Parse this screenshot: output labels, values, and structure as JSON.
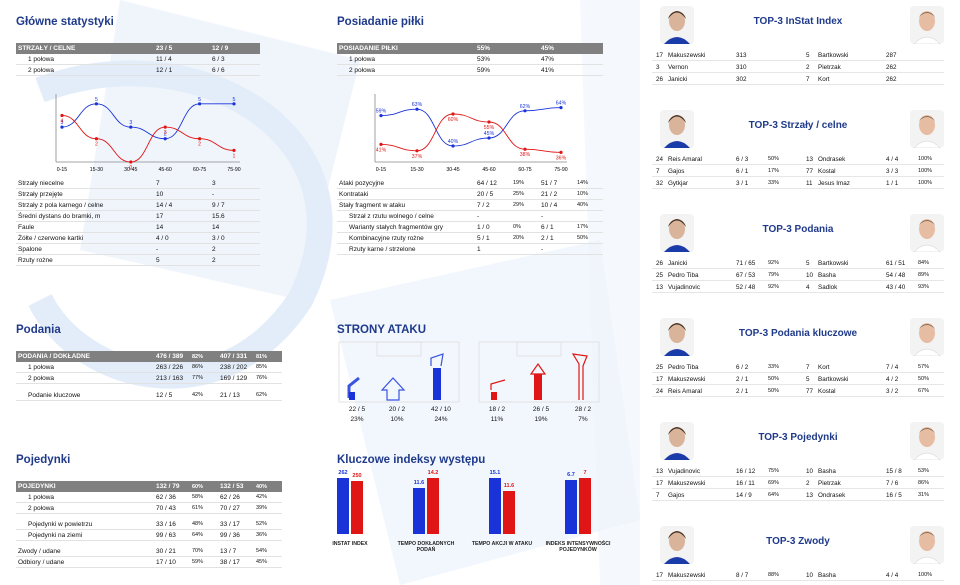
{
  "colors": {
    "blue": "#1a33d8",
    "red": "#e01515",
    "title": "#1f3a8a",
    "header_bg": "#808080"
  },
  "glowne": {
    "title": "Główne statystyki",
    "header": [
      "STRZAŁY / CELNE",
      "23 / 5",
      "12 / 9"
    ],
    "halves": [
      [
        "1 połowa",
        "11 / 4",
        "6 / 3"
      ],
      [
        "2 połowa",
        "12 / 1",
        "6 / 6"
      ]
    ],
    "rows": [
      [
        "Strzały niecelne",
        "7",
        "3"
      ],
      [
        "Strzały przejęte",
        "10",
        "-"
      ],
      [
        "Strzały z pola karnego / celne",
        "14 / 4",
        "9 / 7"
      ],
      [
        "Średni dystans do bramki, m",
        "17",
        "15.6"
      ],
      [
        "Faule",
        "14",
        "14"
      ],
      [
        "Żółte / czerwone kartki",
        "4 / 0",
        "3 / 0"
      ],
      [
        "Spalone",
        "-",
        "2"
      ],
      [
        "Rzuty rożne",
        "5",
        "2"
      ]
    ]
  },
  "posiadanie": {
    "title": "Posiadanie piłki",
    "header": [
      "POSIADANIE PIŁKI",
      "55%",
      "45%"
    ],
    "halves": [
      [
        "1 połowa",
        "53%",
        "47%"
      ],
      [
        "2 połowa",
        "59%",
        "41%"
      ]
    ],
    "rows": [
      [
        "Ataki pozycyjne",
        "64 / 12",
        "19%",
        "51 / 7",
        "14%",
        false
      ],
      [
        "Kontrataki",
        "20 / 5",
        "25%",
        "21 / 2",
        "10%",
        false
      ],
      [
        "Stały fragment w ataku",
        "7 / 2",
        "29%",
        "10 / 4",
        "40%",
        false
      ],
      [
        "Strzał z rzutu wolnego / celne",
        "-",
        "",
        "-",
        "",
        true
      ],
      [
        "Warianty stałych fragmentów gry",
        "1 / 0",
        "0%",
        "6 / 1",
        "17%",
        true
      ],
      [
        "Kombinacyjne rzuty rożne",
        "5 / 1",
        "20%",
        "2 / 1",
        "50%",
        true
      ],
      [
        "Rzuty karne / strzelone",
        "1",
        "",
        "-",
        "",
        true
      ]
    ]
  },
  "chart_data": [
    {
      "type": "line",
      "categories": [
        "0-15",
        "15-30",
        "30-45",
        "45-60",
        "60-75",
        "75-90"
      ],
      "series": [
        {
          "values": [
            3,
            5,
            3,
            2,
            5,
            5
          ]
        },
        {
          "values": [
            4,
            2,
            0,
            3,
            2,
            1
          ]
        }
      ],
      "data_labels": [
        [
          "3",
          "5",
          "3",
          "2",
          "5",
          "5"
        ],
        [
          "4",
          "2",
          "0",
          "3",
          "2",
          "1"
        ]
      ],
      "ylim": [
        0,
        5.5
      ]
    },
    {
      "type": "line",
      "categories": [
        "0-15",
        "15-30",
        "30-45",
        "45-60",
        "60-75",
        "75-90"
      ],
      "series": [
        {
          "values": [
            59,
            63,
            40,
            45,
            62,
            64
          ]
        },
        {
          "values": [
            41,
            37,
            60,
            55,
            38,
            36
          ]
        }
      ],
      "data_labels": [
        [
          "59%",
          "63%",
          "40%",
          "45%",
          "62%",
          "64%"
        ],
        [
          "41%",
          "37%",
          "60%",
          "55%",
          "38%",
          "36%"
        ]
      ],
      "ylim": [
        30,
        70
      ]
    },
    {
      "type": "bar",
      "categories": [
        "INSTAT INDEX",
        "TEMPO DOKŁADNYCH PODAŃ",
        "TEMPO AKCJI W ATAKU",
        "INDEKS INTENSYWNOŚCI POJEDYNKÓW"
      ],
      "series": [
        {
          "values": [
            262,
            11.6,
            15.1,
            6.7
          ]
        },
        {
          "values": [
            250,
            14.2,
            11.6,
            7
          ]
        }
      ],
      "data_labels": [
        [
          "262",
          "11.6",
          "15.1",
          "6.7"
        ],
        [
          "250",
          "14.2",
          "11.6",
          "7"
        ]
      ]
    }
  ],
  "podania": {
    "title": "Podania",
    "header": [
      "PODANIA / DOKŁADNE",
      "476 / 389",
      "82%",
      "407 / 331",
      "81%"
    ],
    "rows": [
      [
        "1 połowa",
        "263 / 226",
        "86%",
        "238 / 202",
        "85%"
      ],
      [
        "2 połowa",
        "213 / 163",
        "77%",
        "169 / 129",
        "76%"
      ]
    ],
    "kluczowe": [
      "Podanie kluczowe",
      "12 / 5",
      "42%",
      "21 / 13",
      "62%"
    ]
  },
  "strony": {
    "title": "STRONY ATAKU",
    "left": [
      {
        "top": "22 / 5",
        "bottom": "23%"
      },
      {
        "top": "20 / 2",
        "bottom": "10%"
      },
      {
        "top": "42 / 10",
        "bottom": "24%"
      }
    ],
    "right": [
      {
        "top": "18 / 2",
        "bottom": "11%"
      },
      {
        "top": "26 / 5",
        "bottom": "19%"
      },
      {
        "top": "28 / 2",
        "bottom": "7%"
      }
    ]
  },
  "pojedynki": {
    "title": "Pojedynki",
    "header": [
      "POJEDYNKI",
      "132 / 79",
      "60%",
      "132 / 53",
      "40%"
    ],
    "rows": [
      [
        "1 połowa",
        "62 / 36",
        "58%",
        "62 / 26",
        "42%",
        true
      ],
      [
        "2 połowa",
        "70 / 43",
        "61%",
        "70 / 27",
        "39%",
        true
      ],
      [
        "Pojedynki w powietrzu",
        "33 / 16",
        "48%",
        "33 / 17",
        "52%",
        true
      ],
      [
        "Pojedynki na ziemi",
        "99 / 63",
        "64%",
        "99 / 36",
        "36%",
        true
      ],
      [
        "Zwody / udane",
        "30 / 21",
        "70%",
        "13 / 7",
        "54%",
        false
      ],
      [
        "Odbiory / udane",
        "17 / 10",
        "59%",
        "38 / 17",
        "45%",
        false
      ]
    ]
  },
  "kluczowe_title": "Kluczowe indeksy występu",
  "top": [
    {
      "title": "TOP-3 InStat Index",
      "left": [
        [
          "17",
          "Makuszewski",
          "313",
          ""
        ],
        [
          "3",
          "Vernon",
          "310",
          ""
        ],
        [
          "26",
          "Janicki",
          "302",
          ""
        ]
      ],
      "right": [
        [
          "5",
          "Bartkowski",
          "287",
          ""
        ],
        [
          "2",
          "Pietrzak",
          "262",
          ""
        ],
        [
          "7",
          "Kort",
          "262",
          ""
        ]
      ]
    },
    {
      "title": "TOP-3 Strzały / celne",
      "left": [
        [
          "24",
          "Reis Amaral",
          "6 / 3",
          "50%"
        ],
        [
          "7",
          "Gajos",
          "6 / 1",
          "17%"
        ],
        [
          "32",
          "Gytkjar",
          "3 / 1",
          "33%"
        ]
      ],
      "right": [
        [
          "13",
          "Ondrasek",
          "4 / 4",
          "100%"
        ],
        [
          "77",
          "Kostal",
          "3 / 3",
          "100%"
        ],
        [
          "11",
          "Jesus Imaz",
          "1 / 1",
          "100%"
        ]
      ]
    },
    {
      "title": "TOP-3 Podania",
      "left": [
        [
          "26",
          "Janicki",
          "71 / 65",
          "92%"
        ],
        [
          "25",
          "Pedro Tiba",
          "67 / 53",
          "79%"
        ],
        [
          "13",
          "Vujadinovic",
          "52 / 48",
          "92%"
        ]
      ],
      "right": [
        [
          "5",
          "Bartkowski",
          "61 / 51",
          "84%"
        ],
        [
          "10",
          "Basha",
          "54 / 48",
          "89%"
        ],
        [
          "4",
          "Sadlok",
          "43 / 40",
          "93%"
        ]
      ]
    },
    {
      "title": "TOP-3 Podania kluczowe",
      "left": [
        [
          "25",
          "Pedro Tiba",
          "6 / 2",
          "33%"
        ],
        [
          "17",
          "Makuszewski",
          "2 / 1",
          "50%"
        ],
        [
          "24",
          "Reis Amaral",
          "2 / 1",
          "50%"
        ]
      ],
      "right": [
        [
          "7",
          "Kort",
          "7 / 4",
          "57%"
        ],
        [
          "5",
          "Bartkowski",
          "4 / 2",
          "50%"
        ],
        [
          "77",
          "Kostal",
          "3 / 2",
          "67%"
        ]
      ]
    },
    {
      "title": "TOP-3 Pojedynki",
      "left": [
        [
          "13",
          "Vujadinovic",
          "16 / 12",
          "75%"
        ],
        [
          "17",
          "Makuszewski",
          "16 / 11",
          "69%"
        ],
        [
          "7",
          "Gajos",
          "14 / 9",
          "64%"
        ]
      ],
      "right": [
        [
          "10",
          "Basha",
          "15 / 8",
          "53%"
        ],
        [
          "2",
          "Pietrzak",
          "7 / 6",
          "86%"
        ],
        [
          "13",
          "Ondrasek",
          "16 / 5",
          "31%"
        ]
      ]
    },
    {
      "title": "TOP-3 Zwody",
      "left": [
        [
          "17",
          "Makuszewski",
          "8 / 7",
          "88%"
        ]
      ],
      "right": [
        [
          "10",
          "Basha",
          "4 / 4",
          "100%"
        ]
      ]
    }
  ]
}
